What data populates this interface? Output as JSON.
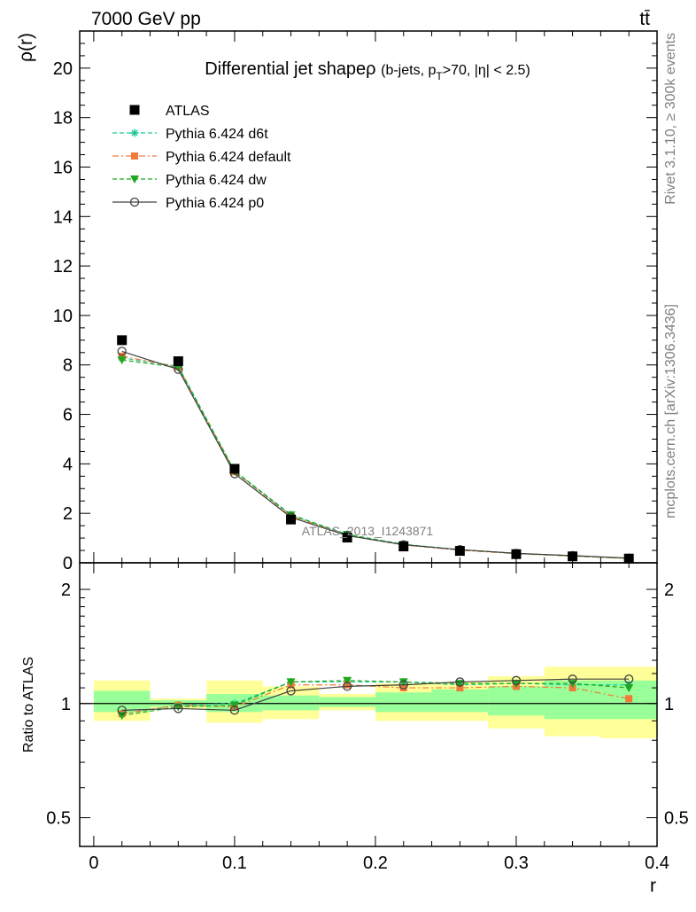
{
  "header": {
    "energy_label": "7000 GeV pp",
    "process_label": "tt̄",
    "analysis_id": "ATLAS_2013_I1243871",
    "rivet_label": "Rivet 3.1.10, ≥ 300k events",
    "mcplots_label": "mcplots.cern.ch [arXiv:1306.3436]"
  },
  "chart_data": [
    {
      "type": "line",
      "title_main": "Differential jet shapeρ",
      "title_sub_before": "(b-jets, p",
      "title_sub_subscript": "T",
      "title_sub_after": ">70, |η| < 2.5)",
      "ylabel": "ρ(r)",
      "xlim": [
        -0.01,
        0.4
      ],
      "ylim": [
        0,
        21.5
      ],
      "yticks": [
        0,
        2,
        4,
        6,
        8,
        10,
        12,
        14,
        16,
        18,
        20
      ],
      "x": [
        0.02,
        0.06,
        0.1,
        0.14,
        0.18,
        0.22,
        0.26,
        0.3,
        0.34,
        0.38
      ],
      "legend_position": "top-left",
      "series": [
        {
          "name": "ATLAS",
          "color": "#000000",
          "marker": "square",
          "values": [
            9.0,
            8.15,
            3.8,
            1.75,
            1.02,
            0.66,
            0.48,
            0.35,
            0.26,
            0.17
          ]
        },
        {
          "name": "Pythia 6.424 d6t",
          "color": "#1fc997",
          "marker": "star",
          "dash": "dash",
          "values": [
            8.28,
            7.95,
            3.72,
            1.95,
            1.15,
            0.75,
            0.53,
            0.38,
            0.28,
            0.18
          ]
        },
        {
          "name": "Pythia 6.424 default",
          "color": "#f07a3a",
          "marker": "square-small",
          "dash": "dashdot",
          "values": [
            8.35,
            7.92,
            3.68,
            1.9,
            1.12,
            0.72,
            0.51,
            0.37,
            0.27,
            0.17
          ]
        },
        {
          "name": "Pythia 6.424 dw",
          "color": "#1ea81e",
          "marker": "triangle-down",
          "dash": "dash",
          "values": [
            8.2,
            7.9,
            3.7,
            1.93,
            1.14,
            0.74,
            0.53,
            0.38,
            0.28,
            0.18
          ]
        },
        {
          "name": "Pythia 6.424 p0",
          "color": "#404040",
          "marker": "circle-open",
          "dash": "solid",
          "values": [
            8.55,
            7.82,
            3.6,
            1.84,
            1.1,
            0.73,
            0.53,
            0.38,
            0.29,
            0.19
          ]
        }
      ]
    },
    {
      "type": "line",
      "ylabel": "Ratio to ATLAS",
      "xlabel": "r",
      "xlim": [
        -0.01,
        0.4
      ],
      "ylim": [
        0.42,
        2.35
      ],
      "log_y": true,
      "yticks": [
        0.5,
        1,
        2
      ],
      "xticks": [
        0,
        0.1,
        0.2,
        0.3,
        0.4
      ],
      "x": [
        0.02,
        0.06,
        0.1,
        0.14,
        0.18,
        0.22,
        0.26,
        0.3,
        0.34,
        0.38
      ],
      "bins": [
        [
          0,
          0.04
        ],
        [
          0.04,
          0.08
        ],
        [
          0.08,
          0.12
        ],
        [
          0.12,
          0.16
        ],
        [
          0.16,
          0.2
        ],
        [
          0.2,
          0.24
        ],
        [
          0.24,
          0.28
        ],
        [
          0.28,
          0.32
        ],
        [
          0.32,
          0.36
        ],
        [
          0.36,
          0.4
        ]
      ],
      "band_inner": [
        [
          0.95,
          1.08
        ],
        [
          0.98,
          1.02
        ],
        [
          0.95,
          1.06
        ],
        [
          0.96,
          1.05
        ],
        [
          0.98,
          1.04
        ],
        [
          0.95,
          1.07
        ],
        [
          0.95,
          1.09
        ],
        [
          0.93,
          1.11
        ],
        [
          0.91,
          1.15
        ],
        [
          0.91,
          1.15
        ]
      ],
      "band_outer": [
        [
          0.9,
          1.15
        ],
        [
          0.97,
          1.03
        ],
        [
          0.89,
          1.15
        ],
        [
          0.91,
          1.11
        ],
        [
          0.96,
          1.06
        ],
        [
          0.9,
          1.13
        ],
        [
          0.9,
          1.14
        ],
        [
          0.86,
          1.18
        ],
        [
          0.82,
          1.25
        ],
        [
          0.81,
          1.25
        ]
      ],
      "band_colors": {
        "inner": "#99ff99",
        "outer": "#ffff99"
      },
      "series": [
        {
          "name": "Pythia 6.424 d6t",
          "color": "#1fc997",
          "marker": "star",
          "dash": "dash",
          "values": [
            0.94,
            0.99,
            1.0,
            1.14,
            1.14,
            1.14,
            1.12,
            1.13,
            1.12,
            1.12
          ]
        },
        {
          "name": "Pythia 6.424 default",
          "color": "#f07a3a",
          "marker": "square-small",
          "dash": "dashdot",
          "values": [
            0.94,
            0.99,
            0.98,
            1.12,
            1.12,
            1.1,
            1.1,
            1.11,
            1.1,
            1.03
          ]
        },
        {
          "name": "Pythia 6.424 dw",
          "color": "#1ea81e",
          "marker": "triangle-down",
          "dash": "dash",
          "values": [
            0.93,
            0.98,
            0.99,
            1.14,
            1.15,
            1.14,
            1.13,
            1.13,
            1.13,
            1.1
          ]
        },
        {
          "name": "Pythia 6.424 p0",
          "color": "#404040",
          "marker": "circle-open",
          "dash": "solid",
          "values": [
            0.96,
            0.97,
            0.96,
            1.08,
            1.11,
            1.12,
            1.14,
            1.15,
            1.16,
            1.16
          ]
        }
      ]
    }
  ]
}
